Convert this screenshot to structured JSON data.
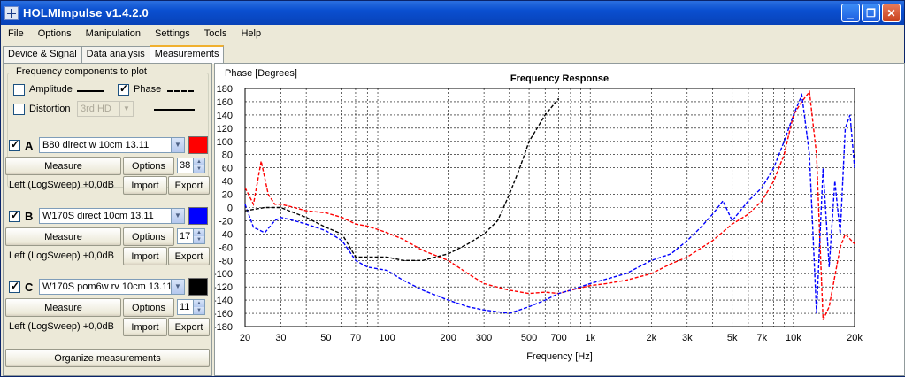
{
  "window": {
    "title": "HOLMImpulse  v1.4.2.0",
    "minimize": "_",
    "maximize": "❐",
    "close": "✕"
  },
  "menu": [
    "File",
    "Options",
    "Manipulation",
    "Settings",
    "Tools",
    "Help"
  ],
  "tabs": [
    {
      "label": "Device & Signal",
      "active": false
    },
    {
      "label": "Data analysis",
      "active": false
    },
    {
      "label": "Measurements",
      "active": true
    }
  ],
  "components": {
    "title": "Frequency components to plot",
    "amplitude": {
      "label": "Amplitude",
      "checked": false
    },
    "phase": {
      "label": "Phase",
      "checked": true
    },
    "distortion": {
      "label": "Distortion",
      "checked": false,
      "select": "3rd HD"
    }
  },
  "measurements": [
    {
      "letter": "A",
      "checked": true,
      "name": "B80 direct w 10cm 13.11",
      "color": "#ff0000",
      "measure_label": "Measure",
      "options_label": "Options",
      "spin": "38",
      "info": "Left (LogSweep) +0,0dB",
      "import_label": "Import",
      "export_label": "Export"
    },
    {
      "letter": "B",
      "checked": true,
      "name": "W170S direct 10cm 13.11",
      "color": "#0000ff",
      "measure_label": "Measure",
      "options_label": "Options",
      "spin": "17",
      "info": "Left (LogSweep) +0,0dB",
      "import_label": "Import",
      "export_label": "Export"
    },
    {
      "letter": "C",
      "checked": true,
      "name": "W170S pom6w rv 10cm 13.11",
      "color": "#000000",
      "measure_label": "Measure",
      "options_label": "Options",
      "spin": "11",
      "info": "Left (LogSweep) +0,0dB",
      "import_label": "Import",
      "export_label": "Export"
    }
  ],
  "organize_label": "Organize measurements",
  "chart_data": {
    "type": "line",
    "title": "Frequency Response",
    "ylabel": "Phase [Degrees]",
    "xlabel": "Frequency [Hz]",
    "xscale": "log",
    "xlim": [
      20,
      20000
    ],
    "ylim": [
      -180,
      180
    ],
    "grid": true,
    "x_ticks": [
      20,
      30,
      50,
      70,
      100,
      200,
      300,
      500,
      700,
      1000,
      2000,
      3000,
      5000,
      7000,
      10000,
      20000
    ],
    "x_tick_labels": [
      "20",
      "30",
      "50",
      "70",
      "100",
      "200",
      "300",
      "500",
      "700",
      "1k",
      "2k",
      "3k",
      "5k",
      "7k",
      "10k",
      "20k"
    ],
    "y_ticks": [
      180,
      160,
      140,
      120,
      100,
      80,
      60,
      40,
      20,
      0,
      -20,
      -40,
      -60,
      -80,
      -100,
      -120,
      -140,
      -160,
      -180
    ],
    "series": [
      {
        "color": "#ff0000",
        "style": "dashed",
        "points": [
          [
            20,
            30
          ],
          [
            22,
            5
          ],
          [
            24,
            70
          ],
          [
            26,
            20
          ],
          [
            28,
            5
          ],
          [
            30,
            5
          ],
          [
            35,
            0
          ],
          [
            40,
            -5
          ],
          [
            50,
            -8
          ],
          [
            60,
            -15
          ],
          [
            70,
            -25
          ],
          [
            80,
            -28
          ],
          [
            100,
            -38
          ],
          [
            120,
            -48
          ],
          [
            150,
            -65
          ],
          [
            200,
            -80
          ],
          [
            250,
            -100
          ],
          [
            300,
            -115
          ],
          [
            400,
            -125
          ],
          [
            500,
            -130
          ],
          [
            600,
            -128
          ],
          [
            700,
            -130
          ],
          [
            800,
            -125
          ],
          [
            1000,
            -118
          ],
          [
            1200,
            -115
          ],
          [
            1500,
            -110
          ],
          [
            2000,
            -100
          ],
          [
            2500,
            -85
          ],
          [
            3000,
            -75
          ],
          [
            4000,
            -50
          ],
          [
            5000,
            -25
          ],
          [
            6000,
            -10
          ],
          [
            7000,
            10
          ],
          [
            8000,
            40
          ],
          [
            9000,
            80
          ],
          [
            10000,
            140
          ],
          [
            11000,
            160
          ],
          [
            12000,
            175
          ],
          [
            13000,
            80
          ],
          [
            14000,
            -170
          ],
          [
            15000,
            -150
          ],
          [
            17000,
            -60
          ],
          [
            18000,
            -40
          ],
          [
            20000,
            -55
          ]
        ]
      },
      {
        "color": "#0000ff",
        "style": "dashed",
        "points": [
          [
            20,
            5
          ],
          [
            22,
            -30
          ],
          [
            25,
            -38
          ],
          [
            28,
            -20
          ],
          [
            30,
            -15
          ],
          [
            35,
            -20
          ],
          [
            40,
            -25
          ],
          [
            50,
            -35
          ],
          [
            60,
            -50
          ],
          [
            70,
            -80
          ],
          [
            80,
            -90
          ],
          [
            100,
            -95
          ],
          [
            120,
            -110
          ],
          [
            150,
            -125
          ],
          [
            200,
            -140
          ],
          [
            250,
            -150
          ],
          [
            300,
            -155
          ],
          [
            400,
            -160
          ],
          [
            500,
            -150
          ],
          [
            600,
            -140
          ],
          [
            700,
            -130
          ],
          [
            800,
            -125
          ],
          [
            1000,
            -115
          ],
          [
            1500,
            -100
          ],
          [
            2000,
            -80
          ],
          [
            2500,
            -70
          ],
          [
            3000,
            -50
          ],
          [
            3500,
            -30
          ],
          [
            4000,
            -10
          ],
          [
            4500,
            10
          ],
          [
            5000,
            -20
          ],
          [
            6000,
            10
          ],
          [
            7000,
            30
          ],
          [
            8000,
            60
          ],
          [
            9000,
            100
          ],
          [
            10000,
            140
          ],
          [
            11000,
            170
          ],
          [
            12000,
            80
          ],
          [
            13000,
            -160
          ],
          [
            14000,
            60
          ],
          [
            15000,
            -90
          ],
          [
            16000,
            40
          ],
          [
            17000,
            -40
          ],
          [
            18000,
            120
          ],
          [
            19000,
            140
          ],
          [
            20000,
            60
          ]
        ]
      },
      {
        "color": "#000000",
        "style": "dashed",
        "points": [
          [
            20,
            -5
          ],
          [
            25,
            0
          ],
          [
            30,
            0
          ],
          [
            40,
            -15
          ],
          [
            50,
            -30
          ],
          [
            60,
            -40
          ],
          [
            70,
            -75
          ],
          [
            80,
            -75
          ],
          [
            100,
            -75
          ],
          [
            120,
            -80
          ],
          [
            150,
            -80
          ],
          [
            200,
            -70
          ],
          [
            250,
            -55
          ],
          [
            300,
            -40
          ],
          [
            350,
            -20
          ],
          [
            400,
            20
          ],
          [
            450,
            60
          ],
          [
            500,
            100
          ],
          [
            600,
            140
          ],
          [
            700,
            165
          ]
        ]
      }
    ]
  }
}
